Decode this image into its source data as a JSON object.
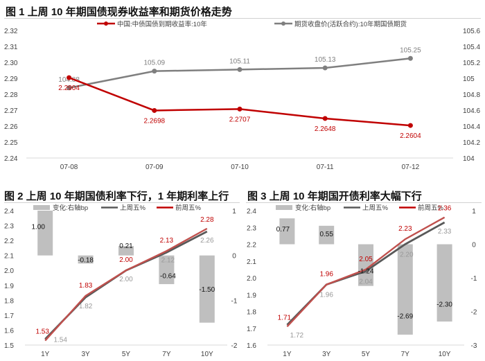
{
  "titles": {
    "chart1": "图 1  上周 10 年期国债现券收益率和期货价格走势",
    "chart2": "图 2  上周 10 年期国债利率下行，1 年期利率上行",
    "chart3": "图 3  上周 10 年期国开债利率大幅下行"
  },
  "colors": {
    "red": "#c00000",
    "gray_line": "#7f7f7f",
    "dark_line": "#595959",
    "bar": "#bfbfbf",
    "axis_text": "#404040"
  },
  "chart_data": [
    {
      "type": "line",
      "title": "图 1  上周 10 年期国债现券收益率和期货价格走势",
      "categories": [
        "07-08",
        "07-09",
        "07-10",
        "07-11",
        "07-12"
      ],
      "series": [
        {
          "name": "中国:中债国债到期收益率:10年",
          "axis": "left",
          "values": [
            2.2904,
            2.2698,
            2.2707,
            2.2648,
            2.2604
          ],
          "labels": [
            "2.2904",
            "2.2698",
            "2.2707",
            "2.2648",
            "2.2604"
          ]
        },
        {
          "name": "期货收盘价(活跃合约):10年期国债期货",
          "axis": "right",
          "values": [
            104.88,
            105.09,
            105.11,
            105.13,
            105.25
          ],
          "labels": [
            "104.88",
            "105.09",
            "105.11",
            "105.13",
            "105.25"
          ]
        }
      ],
      "ylim_left": [
        2.24,
        2.32
      ],
      "yticks_left": [
        "2.24",
        "2.25",
        "2.26",
        "2.27",
        "2.28",
        "2.29",
        "2.30",
        "2.31",
        "2.32"
      ],
      "ylim_right": [
        104,
        105.6
      ],
      "yticks_right": [
        "104",
        "104.2",
        "104.4",
        "104.6",
        "104.8",
        "105",
        "105.2",
        "105.4",
        "105.6"
      ],
      "legend": "top"
    },
    {
      "type": "bar+line",
      "title": "图 2  上周 10 年期国债利率下行，1 年期利率上行",
      "categories": [
        "1Y",
        "3Y",
        "5Y",
        "7Y",
        "10Y"
      ],
      "bars": {
        "name": "变化:右轴bp",
        "axis": "right",
        "values": [
          1.0,
          -0.18,
          0.21,
          -0.64,
          -1.5
        ],
        "labels": [
          "1.00",
          "-0.18",
          "0.21",
          "-0.64",
          "-1.50"
        ]
      },
      "series": [
        {
          "name": "上周五%",
          "axis": "left",
          "values": [
            1.54,
            1.82,
            2.0,
            2.12,
            2.26
          ],
          "labels": [
            "1.54",
            "1.82",
            "2.00",
            "2.12",
            "2.26"
          ]
        },
        {
          "name": "前周五%",
          "axis": "left",
          "values": [
            1.53,
            1.83,
            2.0,
            2.13,
            2.28
          ],
          "labels": [
            "1.53",
            "1.83",
            "2.00",
            "2.13",
            "2.28"
          ]
        }
      ],
      "ylim_left": [
        1.5,
        2.4
      ],
      "yticks_left": [
        "1.5",
        "1.6",
        "1.7",
        "1.8",
        "1.9",
        "2.0",
        "2.1",
        "2.2",
        "2.3",
        "2.4"
      ],
      "ylim_right": [
        -2,
        1
      ],
      "yticks_right": [
        "-2",
        "-1",
        "0",
        "1"
      ],
      "legend": "top"
    },
    {
      "type": "bar+line",
      "title": "图 3  上周 10 年期国开债利率大幅下行",
      "categories": [
        "1Y",
        "3Y",
        "5Y",
        "7Y",
        "10Y"
      ],
      "bars": {
        "name": "变化:右轴bp",
        "axis": "right",
        "values": [
          0.77,
          0.55,
          -1.24,
          -2.69,
          -2.3
        ],
        "labels": [
          "0.77",
          "0.55",
          "-1.24",
          "-2.69",
          "-2.30"
        ]
      },
      "series": [
        {
          "name": "上周五%",
          "axis": "left",
          "values": [
            1.72,
            1.96,
            2.04,
            2.2,
            2.33
          ],
          "labels": [
            "1.72",
            "1.96",
            "2.04",
            "2.20",
            "2.33"
          ]
        },
        {
          "name": "前周五%",
          "axis": "left",
          "values": [
            1.71,
            1.96,
            2.05,
            2.23,
            2.36
          ],
          "labels": [
            "1.71",
            "1.96",
            "2.05",
            "2.23",
            "2.36"
          ]
        }
      ],
      "ylim_left": [
        1.6,
        2.4
      ],
      "yticks_left": [
        "1.6",
        "1.7",
        "1.8",
        "1.9",
        "2.0",
        "2.1",
        "2.2",
        "2.3",
        "2.4"
      ],
      "ylim_right": [
        -3,
        1
      ],
      "yticks_right": [
        "-3",
        "-2",
        "-1",
        "0",
        "1"
      ],
      "legend": "top"
    }
  ]
}
